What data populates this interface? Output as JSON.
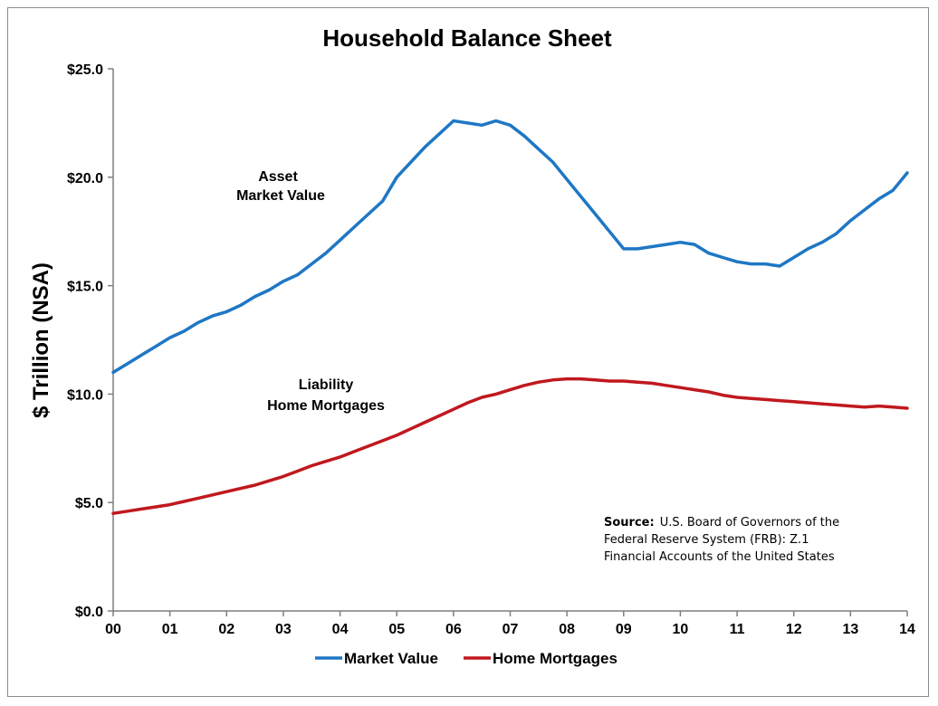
{
  "chart_data": {
    "type": "line",
    "title": "Household Balance Sheet",
    "ylabel": "$ Trillion (NSA)",
    "xlabel": "",
    "ylim": [
      0,
      25
    ],
    "xlim": [
      2000,
      2014
    ],
    "y_ticks": [
      "$0.0",
      "$5.0",
      "$10.0",
      "$15.0",
      "$20.0",
      "$25.0"
    ],
    "y_tick_values": [
      0,
      5,
      10,
      15,
      20,
      25
    ],
    "x_ticks": [
      "00",
      "01",
      "02",
      "03",
      "04",
      "05",
      "06",
      "07",
      "08",
      "09",
      "10",
      "11",
      "12",
      "13",
      "14"
    ],
    "x_tick_values": [
      2000,
      2001,
      2002,
      2003,
      2004,
      2005,
      2006,
      2007,
      2008,
      2009,
      2010,
      2011,
      2012,
      2013,
      2014
    ],
    "grid": false,
    "legend_position": "bottom",
    "series": [
      {
        "name": "Market Value",
        "color": "#1f77c4",
        "x": [
          2000,
          2000.25,
          2000.5,
          2000.75,
          2001,
          2001.25,
          2001.5,
          2001.75,
          2002,
          2002.25,
          2002.5,
          2002.75,
          2003,
          2003.25,
          2003.5,
          2003.75,
          2004,
          2004.25,
          2004.5,
          2004.75,
          2005,
          2005.25,
          2005.5,
          2005.75,
          2006,
          2006.25,
          2006.5,
          2006.75,
          2007,
          2007.25,
          2007.5,
          2007.75,
          2008,
          2008.25,
          2008.5,
          2008.75,
          2009,
          2009.25,
          2009.5,
          2009.75,
          2010,
          2010.25,
          2010.5,
          2010.75,
          2011,
          2011.25,
          2011.5,
          2011.75,
          2012,
          2012.25,
          2012.5,
          2012.75,
          2013,
          2013.25,
          2013.5,
          2013.75,
          2014
        ],
        "values": [
          11.0,
          11.4,
          11.8,
          12.2,
          12.6,
          12.9,
          13.3,
          13.6,
          13.8,
          14.1,
          14.5,
          14.8,
          15.2,
          15.5,
          16.0,
          16.5,
          17.1,
          17.7,
          18.3,
          18.9,
          20.0,
          20.7,
          21.4,
          22.0,
          22.6,
          22.5,
          22.4,
          22.6,
          22.4,
          21.9,
          21.3,
          20.7,
          19.9,
          19.1,
          18.3,
          17.5,
          16.7,
          16.7,
          16.8,
          16.9,
          17.0,
          16.9,
          16.5,
          16.3,
          16.1,
          16.0,
          16.0,
          15.9,
          16.3,
          16.7,
          17.0,
          17.4,
          18.0,
          18.5,
          19.0,
          19.4,
          20.2
        ]
      },
      {
        "name": "Home Mortgages",
        "color": "#c0181e",
        "x": [
          2000,
          2000.25,
          2000.5,
          2000.75,
          2001,
          2001.25,
          2001.5,
          2001.75,
          2002,
          2002.25,
          2002.5,
          2002.75,
          2003,
          2003.25,
          2003.5,
          2003.75,
          2004,
          2004.25,
          2004.5,
          2004.75,
          2005,
          2005.25,
          2005.5,
          2005.75,
          2006,
          2006.25,
          2006.5,
          2006.75,
          2007,
          2007.25,
          2007.5,
          2007.75,
          2008,
          2008.25,
          2008.5,
          2008.75,
          2009,
          2009.25,
          2009.5,
          2009.75,
          2010,
          2010.25,
          2010.5,
          2010.75,
          2011,
          2011.25,
          2011.5,
          2011.75,
          2012,
          2012.25,
          2012.5,
          2012.75,
          2013,
          2013.25,
          2013.5,
          2013.75,
          2014
        ],
        "values": [
          4.5,
          4.6,
          4.7,
          4.8,
          4.9,
          5.05,
          5.2,
          5.35,
          5.5,
          5.65,
          5.8,
          6.0,
          6.2,
          6.45,
          6.7,
          6.9,
          7.1,
          7.35,
          7.6,
          7.85,
          8.1,
          8.4,
          8.7,
          9.0,
          9.3,
          9.6,
          9.85,
          10.0,
          10.2,
          10.4,
          10.55,
          10.65,
          10.7,
          10.7,
          10.65,
          10.6,
          10.6,
          10.55,
          10.5,
          10.4,
          10.3,
          10.2,
          10.1,
          9.95,
          9.85,
          9.8,
          9.75,
          9.7,
          9.65,
          9.6,
          9.55,
          9.5,
          9.45,
          9.4,
          9.45,
          9.4,
          9.35
        ]
      }
    ],
    "annotations": {
      "asset_line1": "Asset",
      "asset_line2": "Market Value",
      "liability_line1": "Liability",
      "liability_line2": "Home Mortgages",
      "source_label": "Source:",
      "source_line1": "U.S. Board of Governors of the",
      "source_line2": "Federal Reserve System (FRB): Z.1",
      "source_line3": "Financial Accounts of the United States"
    }
  }
}
